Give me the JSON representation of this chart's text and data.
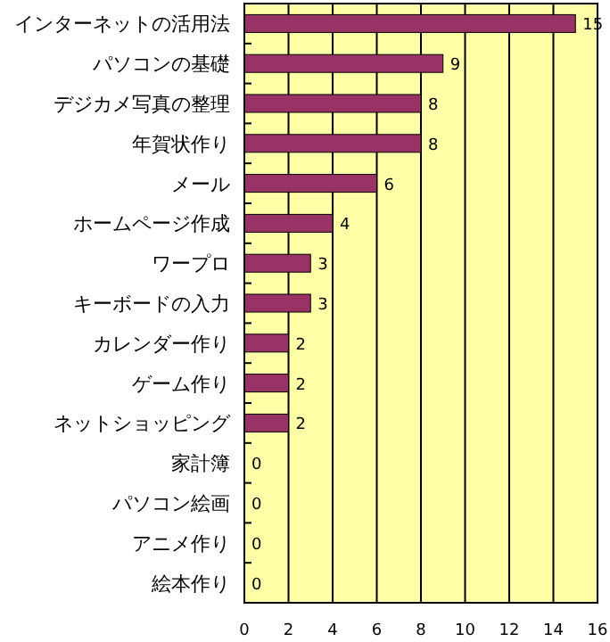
{
  "chart_data": {
    "type": "bar",
    "orientation": "horizontal",
    "categories": [
      "インターネットの活用法",
      "パソコンの基礎",
      "デジカメ写真の整理",
      "年賀状作り",
      "メール",
      "ホームページ作成",
      "ワープロ",
      "キーボードの入力",
      "カレンダー作り",
      "ゲーム作り",
      "ネットショッピング",
      "家計簿",
      "パソコン絵画",
      "アニメ作り",
      "絵本作り"
    ],
    "values": [
      15,
      9,
      8,
      8,
      6,
      4,
      3,
      3,
      2,
      2,
      2,
      0,
      0,
      0,
      0
    ],
    "color": "#993366",
    "xlim": [
      0,
      16
    ],
    "xticks": [
      0,
      2,
      4,
      6,
      8,
      10,
      12,
      14,
      16
    ],
    "grid": "x",
    "data_labels": true
  }
}
